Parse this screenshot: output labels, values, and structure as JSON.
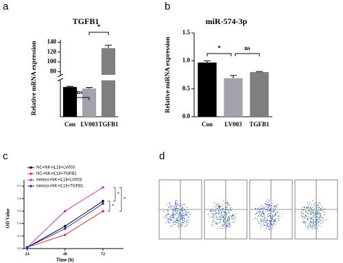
{
  "chart_data": [
    {
      "type": "bar",
      "panel_label": "a",
      "title": "TGFB1",
      "y_label": "Relative mRNA expression",
      "categories": [
        "Con",
        "LV003",
        "TGFB1"
      ],
      "values": [
        1.0,
        0.95,
        128
      ],
      "errors": [
        0.02,
        0.03,
        6
      ],
      "colors": [
        "#000000",
        "#a3a3ad",
        "#7f7f7f"
      ],
      "axis_break": {
        "lower_ylim": [
          0,
          1.2
        ],
        "upper_ylim": [
          75,
          145
        ]
      },
      "yticks": [
        80,
        100,
        120,
        140
      ],
      "annotations": [
        "ns",
        "*"
      ]
    },
    {
      "type": "bar",
      "panel_label": "b",
      "title": "miR-574-3p",
      "y_label": "Relative miRNA expression",
      "categories": [
        "Con",
        "LV003",
        "TGFB1"
      ],
      "values": [
        0.97,
        0.69,
        0.8
      ],
      "errors": [
        0.03,
        0.05,
        0.01
      ],
      "colors": [
        "#000000",
        "#a3a3ad",
        "#7f7f7f"
      ],
      "ylim": [
        0,
        1.5
      ],
      "yticks": [
        {
          "value": 0,
          "label": "0.0"
        },
        {
          "value": 0.5,
          "label": "0.5"
        },
        {
          "value": 1,
          "label": "1.0"
        },
        {
          "value": 1.5,
          "label": "1.5"
        }
      ],
      "annotations": [
        "*",
        "ns"
      ]
    },
    {
      "type": "line",
      "panel_label": "c",
      "x_label": "Time (h)",
      "y_label": "OD Value",
      "x": [
        24,
        48,
        72
      ],
      "xlim": [
        22,
        85
      ],
      "xticks": [
        24,
        48,
        72
      ],
      "ylim": [
        0.2,
        0.75
      ],
      "yticks": [
        {
          "value": 0.2,
          "label": "0.2"
        },
        {
          "value": 0.3,
          "label": "0.3"
        },
        {
          "value": 0.4,
          "label": "0.4"
        },
        {
          "value": 0.5,
          "label": "0.5"
        },
        {
          "value": 0.6,
          "label": "0.6"
        },
        {
          "value": 0.7,
          "label": "0.7"
        }
      ],
      "legend": "upper left",
      "series": [
        {
          "name": "NC+NK+IL18+LV003",
          "color": "#000000",
          "values": [
            0.21,
            0.38,
            0.58
          ]
        },
        {
          "name": "NC+NK+IL18+TGFB1",
          "color": "#e8312a",
          "values": [
            0.21,
            0.31,
            0.5
          ]
        },
        {
          "name": "mimics+NK+IL18+LV003",
          "color": "#cc33cc",
          "values": [
            0.21,
            0.5,
            0.69
          ]
        },
        {
          "name": "mimics+NK+IL18+TGFB1",
          "color": "#2a2ad0",
          "values": [
            0.21,
            0.36,
            0.56
          ]
        }
      ],
      "annotations": [
        "*",
        "*",
        "*"
      ]
    },
    {
      "type": "flow",
      "panel_label": "d"
    }
  ]
}
